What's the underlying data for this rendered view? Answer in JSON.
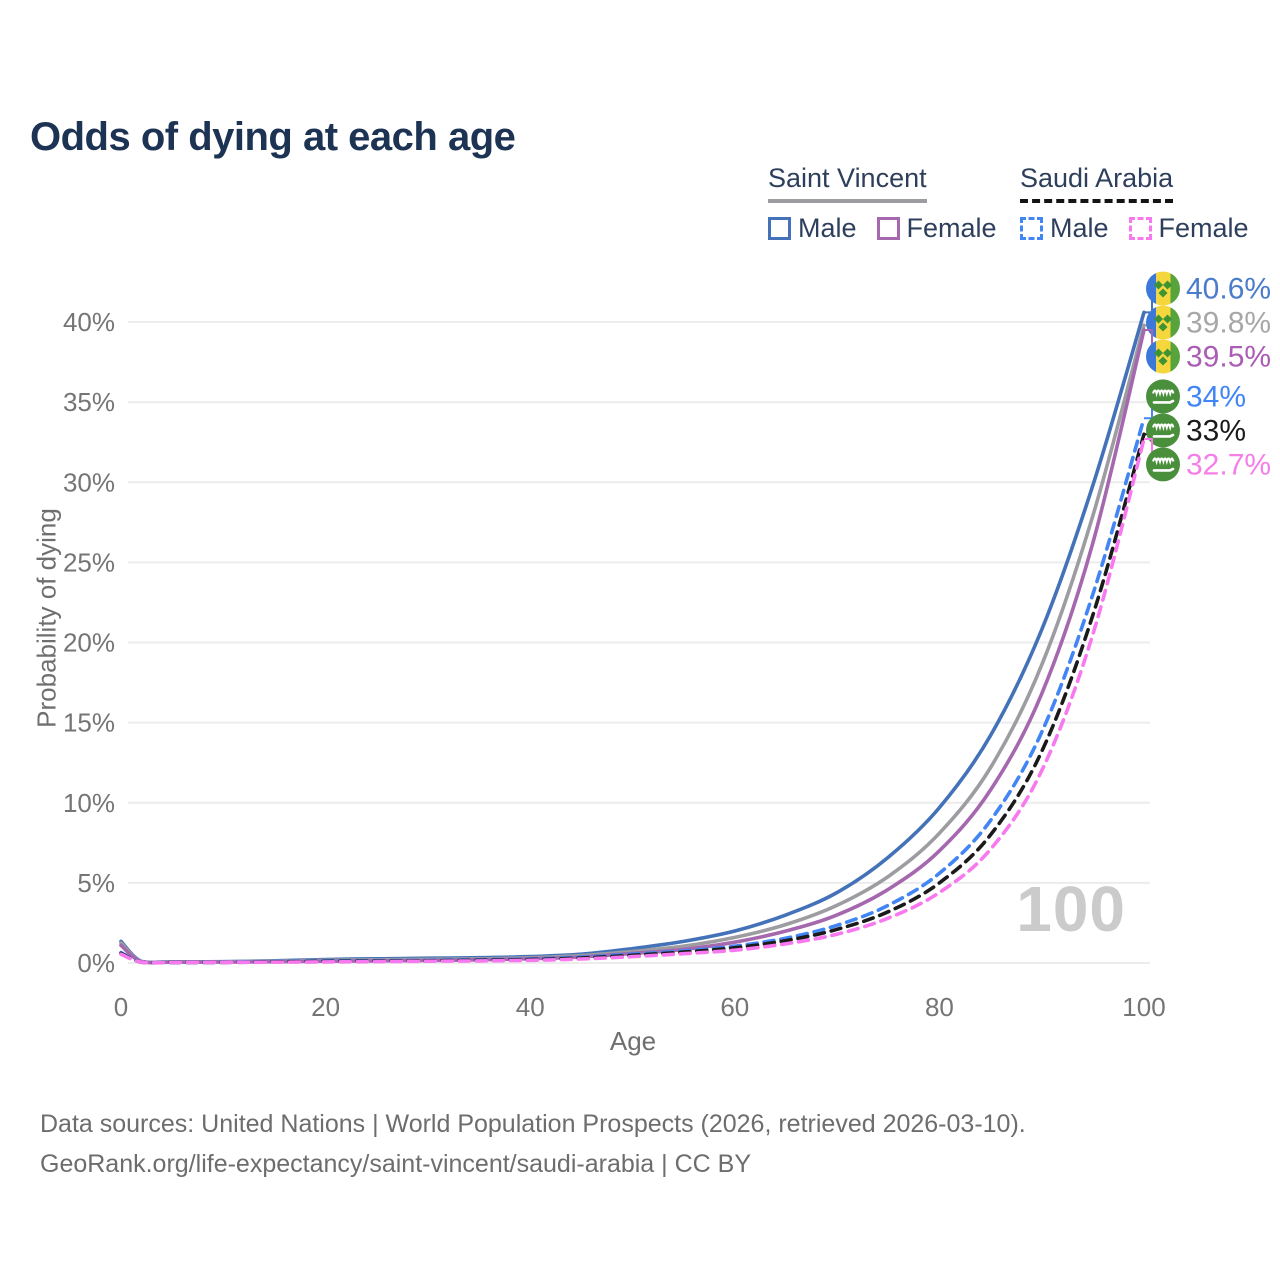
{
  "title": "Odds of dying at each age",
  "legend": {
    "groups": [
      {
        "name": "Saint Vincent",
        "line_style": "solid",
        "underline_color": "#9c9ca1",
        "items": [
          {
            "label": "Male",
            "color": "#4472b8",
            "dashed": false
          },
          {
            "label": "Female",
            "color": "#a568ae",
            "dashed": false
          }
        ]
      },
      {
        "name": "Saudi Arabia",
        "line_style": "dashed",
        "underline_color": "#141414",
        "items": [
          {
            "label": "Male",
            "color": "#4285f4",
            "dashed": true
          },
          {
            "label": "Female",
            "color": "#f878ef",
            "dashed": true
          }
        ]
      }
    ]
  },
  "watermark": "100",
  "footer": {
    "line1": "Data sources: United Nations | World Population Prospects (2026, retrieved 2026-03-10).",
    "line2": "GeoRank.org/life-expectancy/saint-vincent/saudi-arabia | CC BY"
  },
  "chart_data": {
    "type": "line",
    "title": "Odds of dying at each age",
    "xlabel": "Age",
    "ylabel": "Probability of dying",
    "xlim": [
      0,
      100
    ],
    "ylim": [
      0,
      42
    ],
    "x_ticks": [
      0,
      20,
      40,
      60,
      80,
      100
    ],
    "y_ticks": [
      0,
      5,
      10,
      15,
      20,
      25,
      30,
      35,
      40
    ],
    "y_tick_suffix": "%",
    "grid": "horizontal",
    "legend_position": "top-right",
    "ages": [
      0,
      2,
      5,
      10,
      15,
      20,
      25,
      30,
      35,
      40,
      45,
      50,
      55,
      60,
      65,
      70,
      75,
      80,
      85,
      90,
      95,
      100
    ],
    "series": [
      {
        "name": "Saint Vincent Male",
        "country": "Saint Vincent",
        "sex": "Male",
        "color": "#4472b8",
        "dashed": false,
        "flag": "saint-vincent",
        "end_label": "40.6%",
        "end_label_color": "#4a7cc9",
        "values": [
          1.35,
          0.1,
          0.07,
          0.08,
          0.14,
          0.22,
          0.26,
          0.3,
          0.33,
          0.4,
          0.55,
          0.9,
          1.35,
          2.0,
          3.0,
          4.4,
          6.6,
          9.7,
          14.2,
          20.8,
          29.8,
          40.6
        ]
      },
      {
        "name": "Saint Vincent Both sexes",
        "country": "Saint Vincent",
        "sex": "Both sexes",
        "color": "#9c9ca1",
        "dashed": false,
        "flag": "saint-vincent",
        "end_label": "39.8%",
        "end_label_color": "#a7a7a7",
        "values": [
          1.25,
          0.09,
          0.06,
          0.07,
          0.11,
          0.17,
          0.2,
          0.23,
          0.26,
          0.33,
          0.46,
          0.72,
          1.05,
          1.6,
          2.4,
          3.6,
          5.4,
          8.1,
          12.2,
          18.6,
          27.9,
          39.8
        ]
      },
      {
        "name": "Saint Vincent Female",
        "country": "Saint Vincent",
        "sex": "Female",
        "color": "#a568ae",
        "dashed": false,
        "flag": "saint-vincent",
        "end_label": "39.5%",
        "end_label_color": "#ab5cb4",
        "values": [
          1.1,
          0.08,
          0.05,
          0.06,
          0.08,
          0.11,
          0.13,
          0.16,
          0.2,
          0.27,
          0.38,
          0.6,
          0.85,
          1.3,
          2.0,
          3.0,
          4.6,
          7.0,
          10.8,
          16.8,
          26.2,
          39.5
        ]
      },
      {
        "name": "Saudi Arabia Male",
        "country": "Saudi Arabia",
        "sex": "Male",
        "color": "#4285f4",
        "dashed": true,
        "flag": "saudi-arabia",
        "end_label": "34%",
        "end_label_color": "#4285f4",
        "values": [
          0.65,
          0.06,
          0.04,
          0.05,
          0.09,
          0.13,
          0.15,
          0.17,
          0.2,
          0.25,
          0.36,
          0.55,
          0.75,
          1.05,
          1.55,
          2.35,
          3.6,
          5.6,
          8.9,
          14.4,
          23.0,
          34.0
        ]
      },
      {
        "name": "Saudi Arabia Both sexes",
        "country": "Saudi Arabia",
        "sex": "Both sexes",
        "color": "#1a1a1a",
        "dashed": true,
        "flag": "saudi-arabia",
        "end_label": "33%",
        "end_label_color": "#1a1a1a",
        "values": [
          0.6,
          0.05,
          0.04,
          0.04,
          0.07,
          0.1,
          0.12,
          0.14,
          0.17,
          0.21,
          0.31,
          0.48,
          0.68,
          0.95,
          1.4,
          2.1,
          3.2,
          5.0,
          8.0,
          13.2,
          21.7,
          33.0
        ]
      },
      {
        "name": "Saudi Arabia Female",
        "country": "Saudi Arabia",
        "sex": "Female",
        "color": "#f878ef",
        "dashed": true,
        "flag": "saudi-arabia",
        "end_label": "32.7%",
        "end_label_color": "#f57ee8",
        "values": [
          0.55,
          0.05,
          0.03,
          0.04,
          0.05,
          0.07,
          0.09,
          0.11,
          0.13,
          0.17,
          0.25,
          0.4,
          0.58,
          0.8,
          1.2,
          1.8,
          2.8,
          4.4,
          7.1,
          12.0,
          20.5,
          32.7
        ]
      }
    ]
  }
}
